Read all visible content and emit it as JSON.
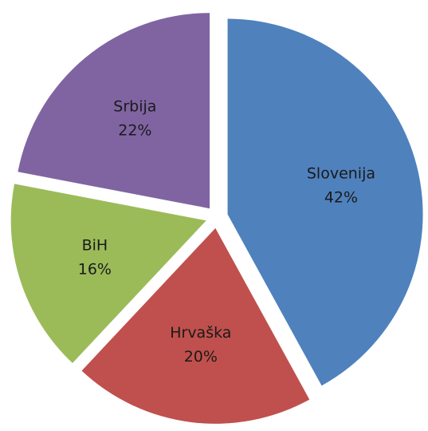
{
  "chart_data": {
    "type": "pie",
    "categories": [
      "Slovenija",
      "Hrvaška",
      "BiH",
      "Srbija"
    ],
    "values": [
      42,
      20,
      16,
      22
    ],
    "value_labels": [
      "42%",
      "20%",
      "16%",
      "22%"
    ],
    "colors": [
      "#4f81bd",
      "#c0504d",
      "#9bbb59",
      "#8064a2"
    ],
    "exploded": true
  }
}
